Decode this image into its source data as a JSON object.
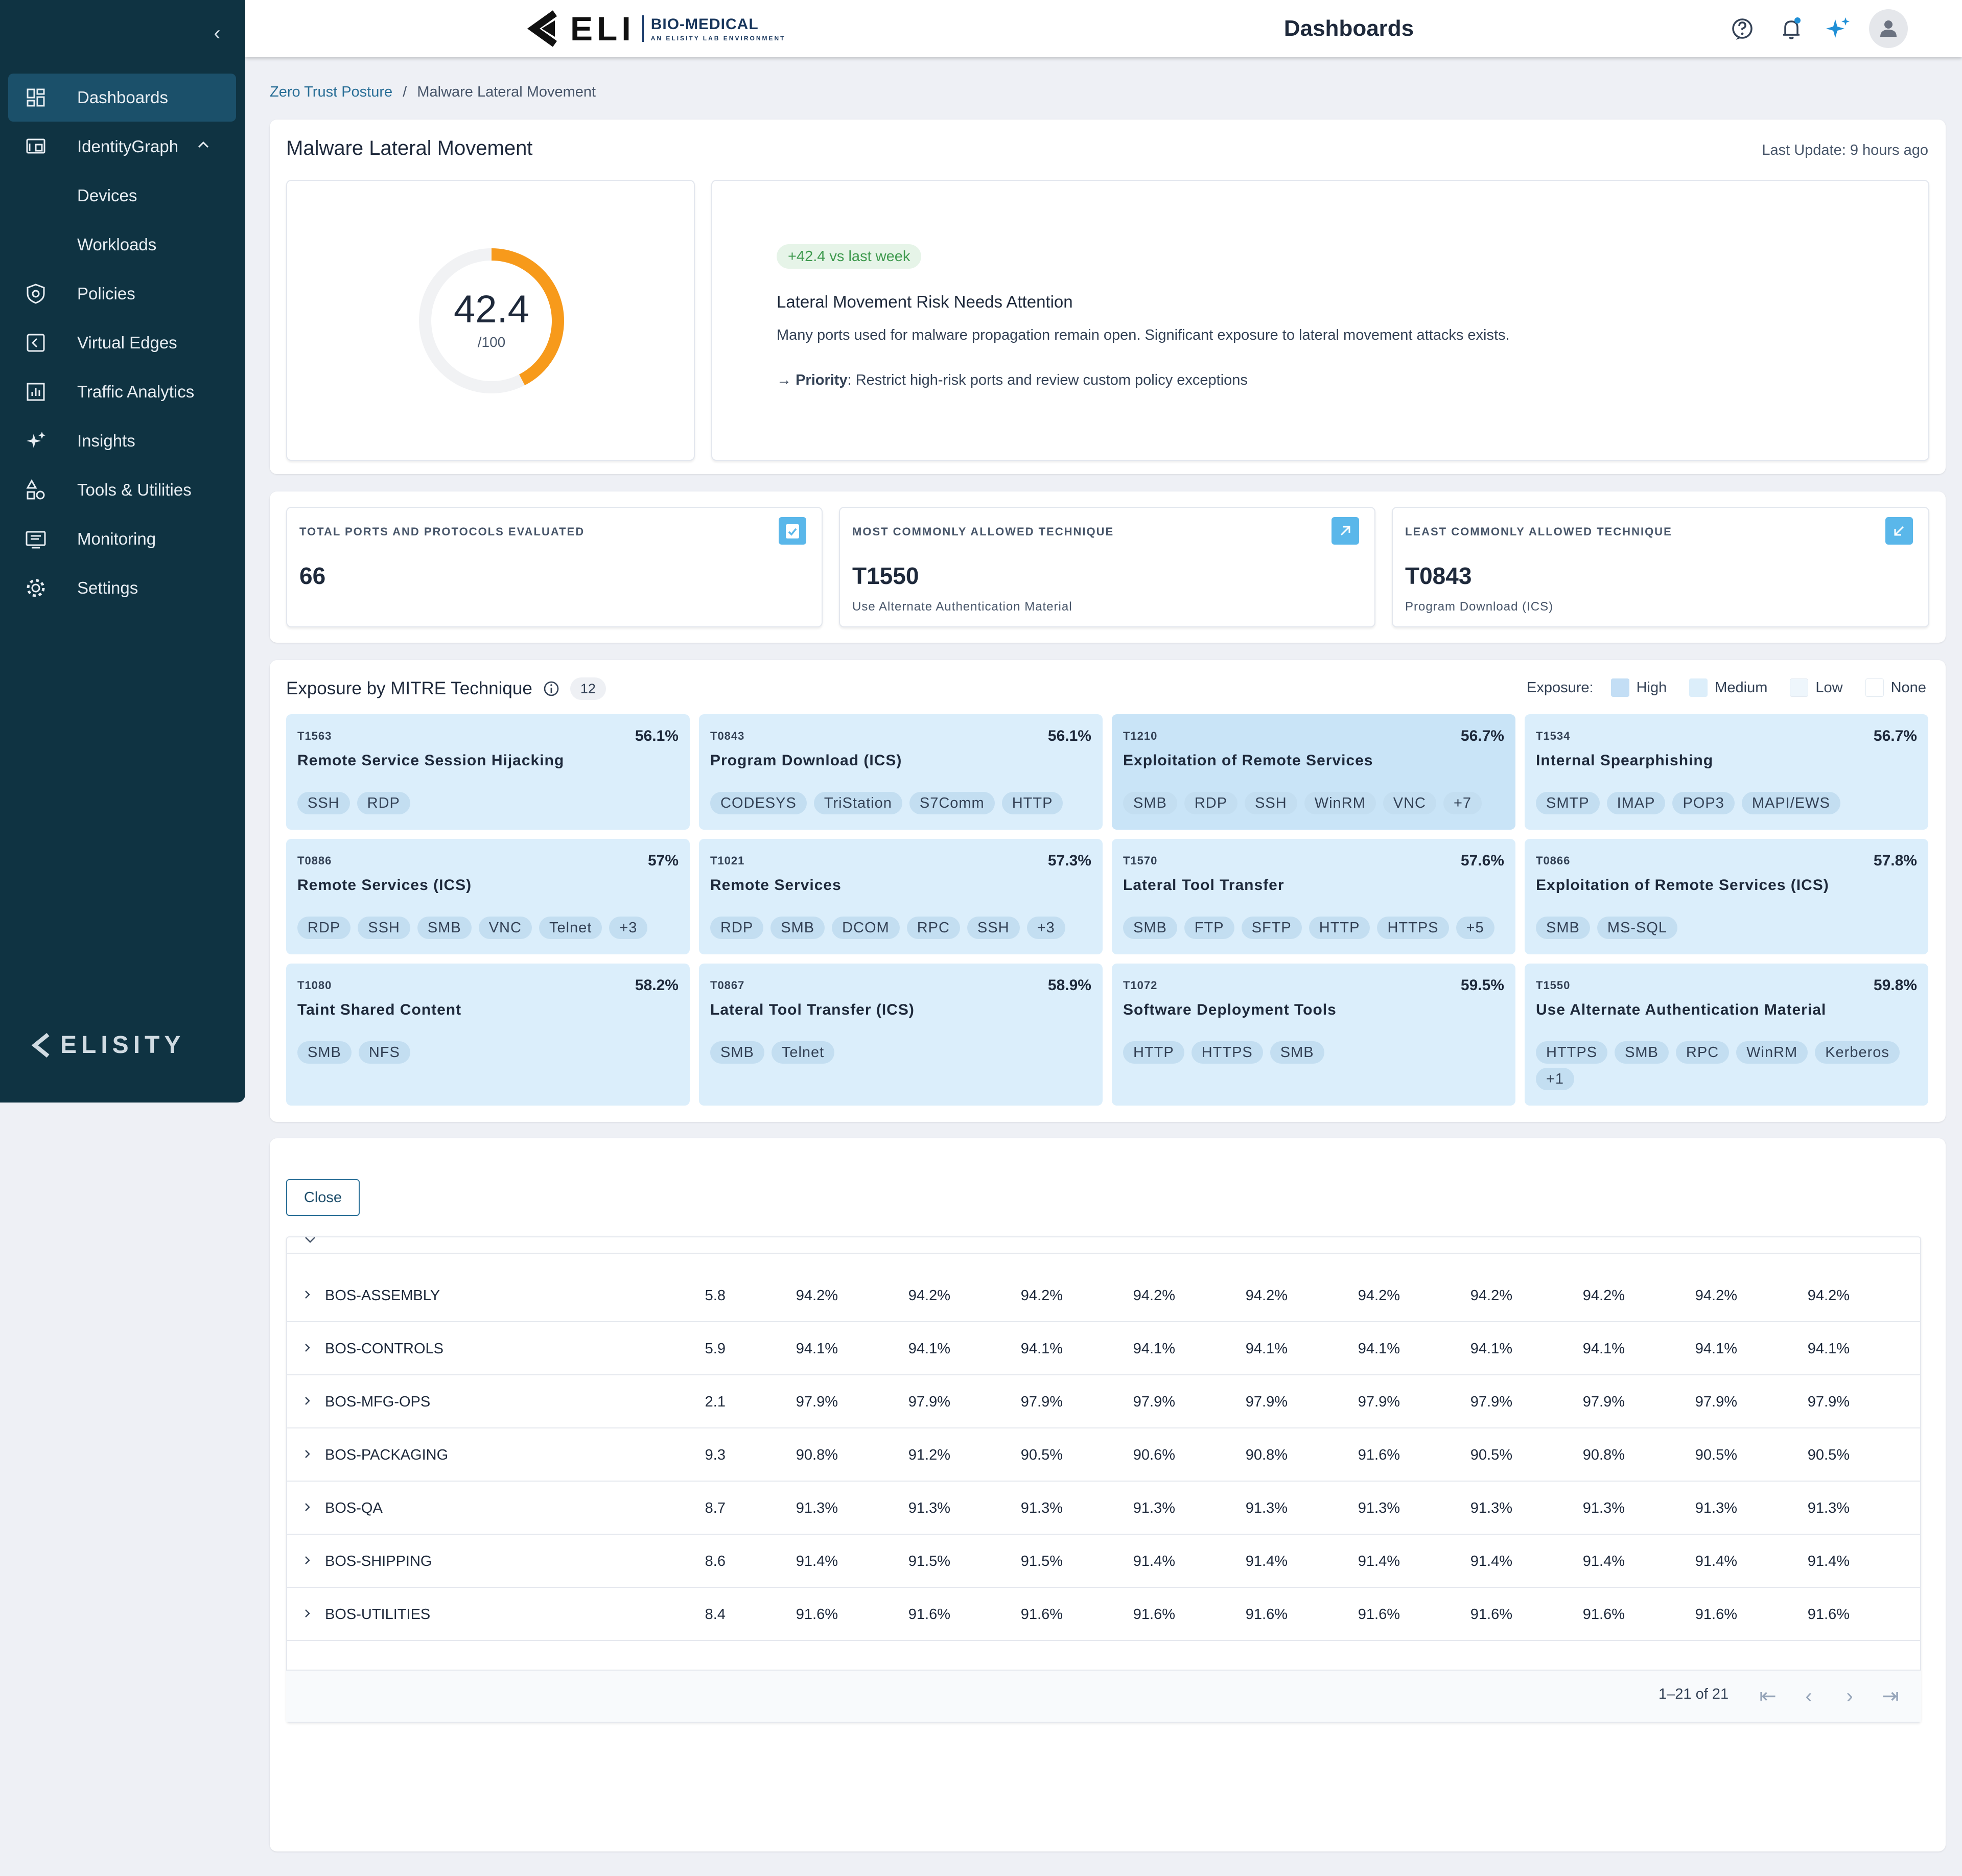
{
  "sidebar": {
    "items": [
      {
        "label": "Dashboards",
        "icon": "dashboard-icon",
        "active": true
      },
      {
        "label": "IdentityGraph",
        "icon": "identity-graph-icon"
      },
      {
        "label": "Devices",
        "sub": true
      },
      {
        "label": "Workloads",
        "sub": true
      },
      {
        "label": "Policies",
        "icon": "shield-icon"
      },
      {
        "label": "Virtual Edges",
        "icon": "virtual-edge-icon"
      },
      {
        "label": "Traffic Analytics",
        "icon": "analytics-icon"
      },
      {
        "label": "Insights",
        "icon": "sparkle-icon"
      },
      {
        "label": "Tools & Utilities",
        "icon": "tools-icon"
      },
      {
        "label": "Monitoring",
        "icon": "monitor-icon"
      },
      {
        "label": "Settings",
        "icon": "gear-icon"
      }
    ],
    "brand": "ELISITY"
  },
  "header": {
    "logo_main": "ELI",
    "logo_title": "BIO-MEDICAL",
    "logo_sub": "AN ELISITY LAB ENVIRONMENT",
    "title": "Dashboards"
  },
  "breadcrumb": {
    "parent": "Zero Trust Posture",
    "sep": "/",
    "current": "Malware Lateral Movement"
  },
  "summary": {
    "title": "Malware Lateral Movement",
    "last_update": "Last Update: 9 hours ago",
    "score": "42.4",
    "score_max": "/100",
    "score_fraction": 0.424,
    "delta": "+42.4 vs last week",
    "headline": "Lateral Movement Risk Needs Attention",
    "description": "Many ports used for malware propagation remain open. Significant exposure to lateral movement attacks exists.",
    "priority_label": "Priority",
    "priority_text": ": Restrict high-risk ports and review custom policy exceptions"
  },
  "stats": [
    {
      "label": "TOTAL PORTS AND PROTOCOLS EVALUATED",
      "value": "66",
      "sub": ""
    },
    {
      "label": "MOST COMMONLY ALLOWED TECHNIQUE",
      "value": "T1550",
      "sub": "Use Alternate Authentication Material"
    },
    {
      "label": "LEAST COMMONLY ALLOWED TECHNIQUE",
      "value": "T0843",
      "sub": "Program Download (ICS)"
    }
  ],
  "mitre": {
    "title": "Exposure by MITRE Technique",
    "count": "12",
    "legend_label": "Exposure:",
    "legend": [
      {
        "label": "High",
        "color": "#c3def5"
      },
      {
        "label": "Medium",
        "color": "#dceefa"
      },
      {
        "label": "Low",
        "color": "#eef6fc"
      },
      {
        "label": "None",
        "color": "#ffffff"
      }
    ],
    "tiles": [
      {
        "id": "T1563",
        "pct": "56.1%",
        "name": "Remote Service Session Hijacking",
        "tags": [
          "SSH",
          "RDP"
        ]
      },
      {
        "id": "T0843",
        "pct": "56.1%",
        "name": "Program Download (ICS)",
        "tags": [
          "CODESYS",
          "TriStation",
          "S7Comm",
          "HTTP"
        ]
      },
      {
        "id": "T1210",
        "pct": "56.7%",
        "name": "Exploitation of Remote Services",
        "tags": [
          "SMB",
          "RDP",
          "SSH",
          "WinRM",
          "VNC",
          "+7"
        ]
      },
      {
        "id": "T1534",
        "pct": "56.7%",
        "name": "Internal Spearphishing",
        "tags": [
          "SMTP",
          "IMAP",
          "POP3",
          "MAPI/EWS"
        ]
      },
      {
        "id": "T0886",
        "pct": "57%",
        "name": "Remote Services (ICS)",
        "tags": [
          "RDP",
          "SSH",
          "SMB",
          "VNC",
          "Telnet",
          "+3"
        ]
      },
      {
        "id": "T1021",
        "pct": "57.3%",
        "name": "Remote Services",
        "tags": [
          "RDP",
          "SMB",
          "DCOM",
          "RPC",
          "SSH",
          "+3"
        ]
      },
      {
        "id": "T1570",
        "pct": "57.6%",
        "name": "Lateral Tool Transfer",
        "tags": [
          "SMB",
          "FTP",
          "SFTP",
          "HTTP",
          "HTTPS",
          "+5"
        ]
      },
      {
        "id": "T0866",
        "pct": "57.8%",
        "name": "Exploitation of Remote Services (ICS)",
        "tags": [
          "SMB",
          "MS-SQL"
        ]
      },
      {
        "id": "T1080",
        "pct": "58.2%",
        "name": "Taint Shared Content",
        "tags": [
          "SMB",
          "NFS"
        ]
      },
      {
        "id": "T0867",
        "pct": "58.9%",
        "name": "Lateral Tool Transfer (ICS)",
        "tags": [
          "SMB",
          "Telnet"
        ]
      },
      {
        "id": "T1072",
        "pct": "59.5%",
        "name": "Software Deployment Tools",
        "tags": [
          "HTTP",
          "HTTPS",
          "SMB"
        ]
      },
      {
        "id": "T1550",
        "pct": "59.8%",
        "name": "Use Alternate Authentication Material",
        "tags": [
          "HTTPS",
          "SMB",
          "RPC",
          "WinRM",
          "Kerberos",
          "+1"
        ]
      }
    ]
  },
  "table": {
    "close_label": "Close",
    "rows": [
      {
        "name": "BOS-ASSEMBLY",
        "score": "5.8",
        "vals": [
          "94.2%",
          "94.2%",
          "94.2%",
          "94.2%",
          "94.2%",
          "94.2%",
          "94.2%",
          "94.2%",
          "94.2%",
          "94.2%"
        ]
      },
      {
        "name": "BOS-CONTROLS",
        "score": "5.9",
        "vals": [
          "94.1%",
          "94.1%",
          "94.1%",
          "94.1%",
          "94.1%",
          "94.1%",
          "94.1%",
          "94.1%",
          "94.1%",
          "94.1%"
        ]
      },
      {
        "name": "BOS-MFG-OPS",
        "score": "2.1",
        "vals": [
          "97.9%",
          "97.9%",
          "97.9%",
          "97.9%",
          "97.9%",
          "97.9%",
          "97.9%",
          "97.9%",
          "97.9%",
          "97.9%"
        ]
      },
      {
        "name": "BOS-PACKAGING",
        "score": "9.3",
        "vals": [
          "90.8%",
          "91.2%",
          "90.5%",
          "90.6%",
          "90.8%",
          "91.6%",
          "90.5%",
          "90.8%",
          "90.5%",
          "90.5%"
        ]
      },
      {
        "name": "BOS-QA",
        "score": "8.7",
        "vals": [
          "91.3%",
          "91.3%",
          "91.3%",
          "91.3%",
          "91.3%",
          "91.3%",
          "91.3%",
          "91.3%",
          "91.3%",
          "91.3%"
        ]
      },
      {
        "name": "BOS-SHIPPING",
        "score": "8.6",
        "vals": [
          "91.4%",
          "91.5%",
          "91.5%",
          "91.4%",
          "91.4%",
          "91.4%",
          "91.4%",
          "91.4%",
          "91.4%",
          "91.4%"
        ]
      },
      {
        "name": "BOS-UTILITIES",
        "score": "8.4",
        "vals": [
          "91.6%",
          "91.6%",
          "91.6%",
          "91.6%",
          "91.6%",
          "91.6%",
          "91.6%",
          "91.6%",
          "91.6%",
          "91.6%"
        ]
      }
    ],
    "pagination": "1–21 of 21"
  }
}
